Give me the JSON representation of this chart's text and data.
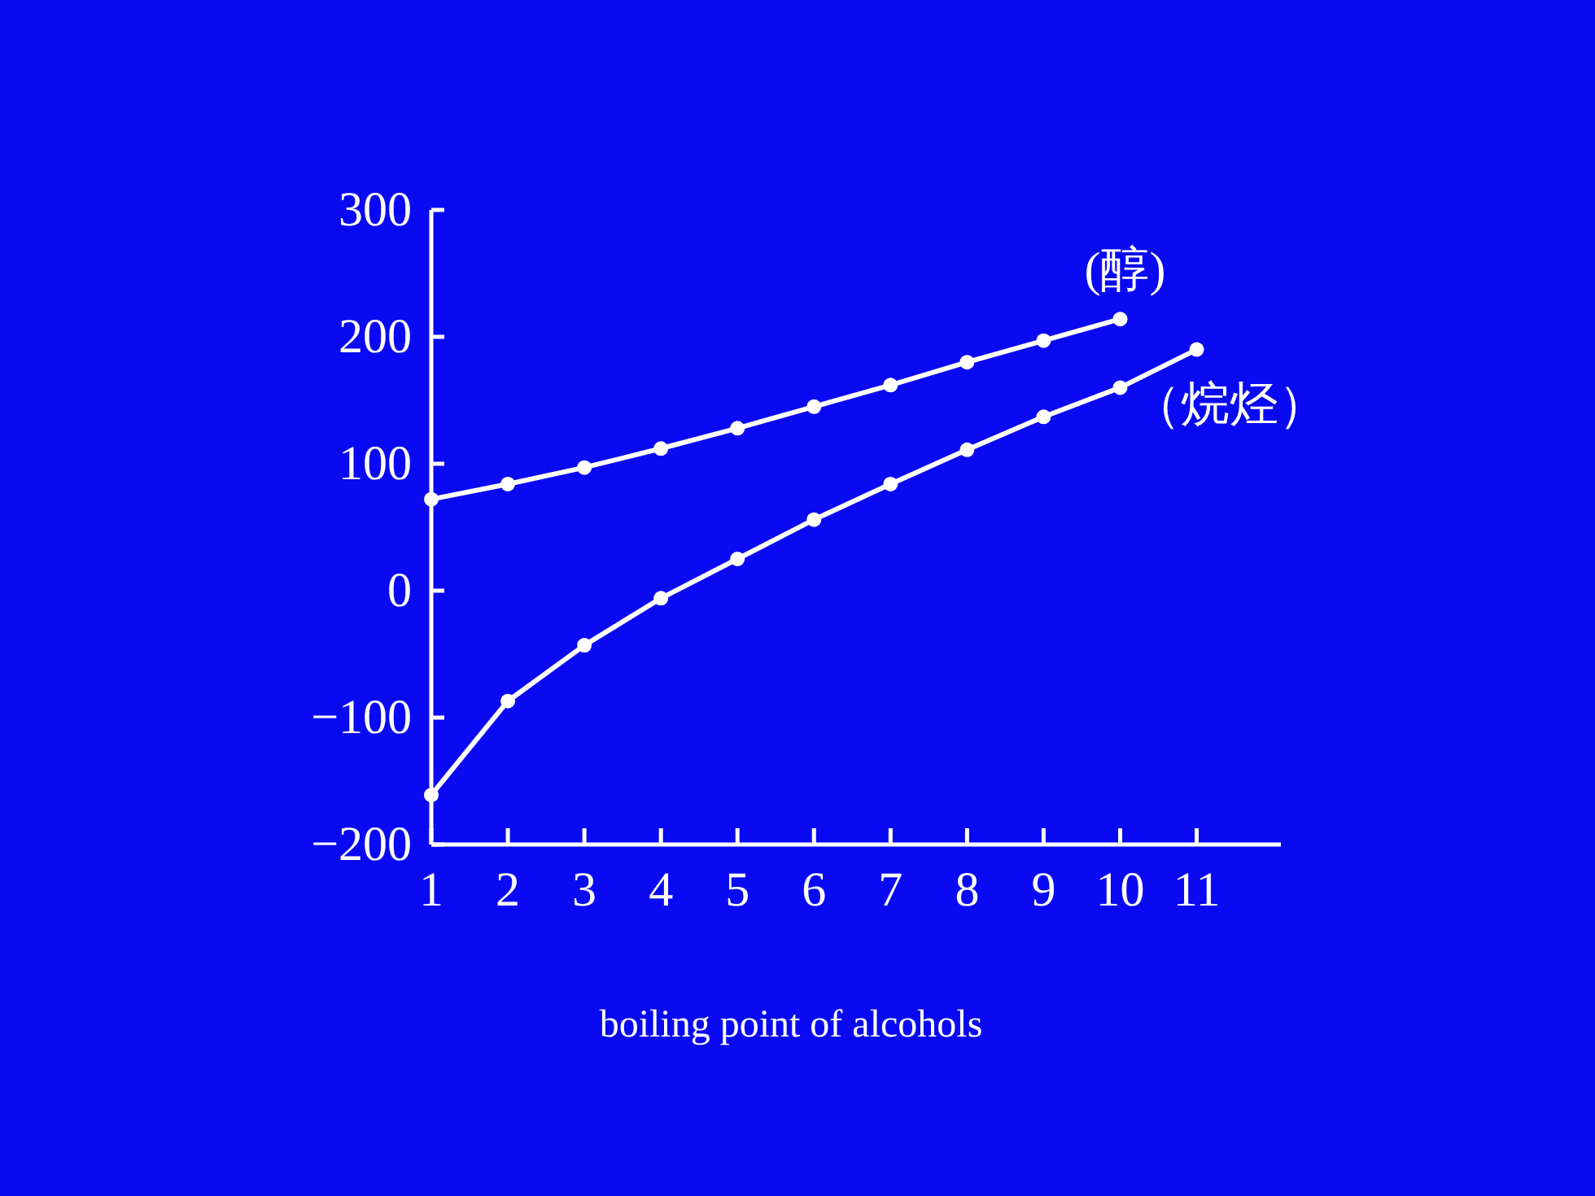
{
  "chart_data": {
    "type": "line",
    "x": [
      1,
      2,
      3,
      4,
      5,
      6,
      7,
      8,
      9,
      10,
      11
    ],
    "xlim": [
      1,
      12.1
    ],
    "xticks": [
      1,
      2,
      3,
      4,
      5,
      6,
      7,
      8,
      9,
      10,
      11
    ],
    "ylim": [
      -200,
      300
    ],
    "yticks": [
      -200,
      -100,
      0,
      100,
      200,
      300
    ],
    "series": [
      {
        "name": "(醇)",
        "color": "#ffffff",
        "x": [
          1,
          2,
          3,
          4,
          5,
          6,
          7,
          8,
          9,
          10
        ],
        "values": [
          72,
          84,
          97,
          112,
          128,
          145,
          162,
          180,
          197,
          214
        ]
      },
      {
        "name": "（烷烃）",
        "color": "#ffffff",
        "values": [
          -161,
          -87,
          -43,
          -6,
          25,
          56,
          84,
          111,
          137,
          160,
          190
        ]
      }
    ],
    "marker": "circle",
    "line_style": "solid",
    "annotations": [
      "boiling point of alcohols"
    ]
  }
}
